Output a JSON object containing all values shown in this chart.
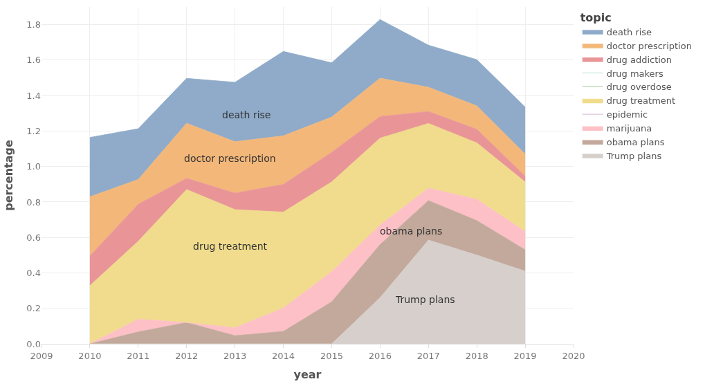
{
  "chart_data": {
    "type": "area",
    "stacked": true,
    "xlabel": "year",
    "ylabel": "percentage",
    "legend_title": "topic",
    "legend": "right",
    "grid": true,
    "marker": "none",
    "x": [
      2010,
      2011,
      2012,
      2013,
      2014,
      2015,
      2016,
      2017,
      2018,
      2019
    ],
    "xlim": [
      2009,
      2020
    ],
    "xticks": [
      2009,
      2010,
      2011,
      2012,
      2013,
      2014,
      2015,
      2016,
      2017,
      2018,
      2019,
      2020
    ],
    "ylim": [
      0,
      1.9
    ],
    "yticks": [
      {
        "value": 0,
        "label": "0.0"
      },
      {
        "value": 0.2,
        "label": "0.2"
      },
      {
        "value": 0.4,
        "label": "0.4"
      },
      {
        "value": 0.6,
        "label": "0.6"
      },
      {
        "value": 0.8,
        "label": "0.8"
      },
      {
        "value": 1.0,
        "label": "1.0"
      },
      {
        "value": 1.2,
        "label": "1.2"
      },
      {
        "value": 1.4,
        "label": "1.4"
      },
      {
        "value": 1.6,
        "label": "1.6"
      },
      {
        "value": 1.8,
        "label": "1.8"
      }
    ],
    "series": [
      {
        "name": "Trump plans",
        "color": "#d6cfcc",
        "values": [
          0,
          0,
          0,
          0,
          0,
          0,
          0.26,
          0.585,
          0.5,
          0.41
        ]
      },
      {
        "name": "obama plans",
        "color": "#c2a99b",
        "values": [
          0,
          0.067,
          0.12,
          0.046,
          0.07,
          0.237,
          0.3,
          0.223,
          0.195,
          0.12
        ]
      },
      {
        "name": "marijuana",
        "color": "#fdc0c6",
        "values": [
          0,
          0.072,
          0,
          0.045,
          0.132,
          0.17,
          0.11,
          0.07,
          0.12,
          0.104
        ]
      },
      {
        "name": "epidemic",
        "color": "#c9a5c4",
        "values": [
          null,
          null,
          null,
          null,
          null,
          null,
          null,
          null,
          null,
          null
        ]
      },
      {
        "name": "drug treatment",
        "color": "#f0dc8c",
        "values": [
          0.328,
          0.439,
          0.75,
          0.666,
          0.541,
          0.506,
          0.49,
          0.365,
          0.318,
          0.279
        ]
      },
      {
        "name": "drug overdose",
        "color": "#8fc283",
        "values": [
          null,
          null,
          null,
          null,
          null,
          null,
          null,
          null,
          null,
          null
        ]
      },
      {
        "name": "drug makers",
        "color": "#a5d3cf",
        "values": [
          null,
          null,
          null,
          null,
          null,
          null,
          null,
          null,
          null,
          null
        ]
      },
      {
        "name": "drug addiction",
        "color": "#e99597",
        "values": [
          0.167,
          0.209,
          0.063,
          0.093,
          0.156,
          0.167,
          0.122,
          0.067,
          0.077,
          0.032
        ]
      },
      {
        "name": "doctor prescription",
        "color": "#f3b77a",
        "values": [
          0.334,
          0.14,
          0.311,
          0.29,
          0.274,
          0.199,
          0.216,
          0.137,
          0.132,
          0.125
        ]
      },
      {
        "name": "death rise",
        "color": "#8fabc9",
        "values": [
          0.335,
          0.286,
          0.253,
          0.335,
          0.476,
          0.306,
          0.331,
          0.237,
          0.261,
          0.265
        ]
      }
    ],
    "annotations": [
      "death rise",
      "doctor prescription",
      "drug treatment",
      "obama plans",
      "Trump plans"
    ]
  }
}
